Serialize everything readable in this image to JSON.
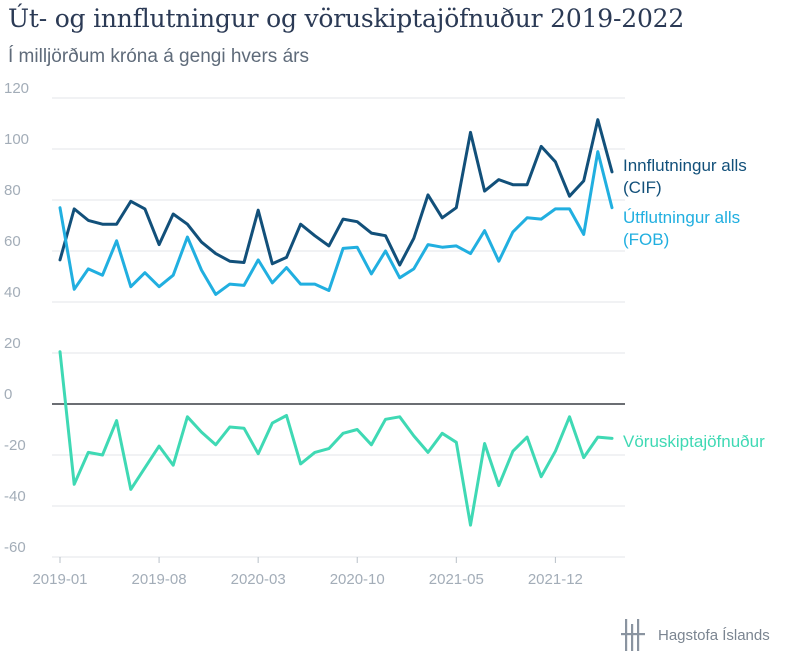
{
  "chart_data": {
    "type": "line",
    "title": "Út- og innflutningur og vöruskiptajöfnuður 2019-2022",
    "subtitle": "Í milljörðum króna á gengi hvers árs",
    "x": [
      "2019-01",
      "2019-02",
      "2019-03",
      "2019-04",
      "2019-05",
      "2019-06",
      "2019-07",
      "2019-08",
      "2019-09",
      "2019-10",
      "2019-11",
      "2019-12",
      "2020-01",
      "2020-02",
      "2020-03",
      "2020-04",
      "2020-05",
      "2020-06",
      "2020-07",
      "2020-08",
      "2020-09",
      "2020-10",
      "2020-11",
      "2020-12",
      "2021-01",
      "2021-02",
      "2021-03",
      "2021-04",
      "2021-05",
      "2021-06",
      "2021-07",
      "2021-08",
      "2021-09",
      "2021-10",
      "2021-11",
      "2021-12",
      "2022-01",
      "2022-02",
      "2022-03",
      "2022-04"
    ],
    "xticks": [
      "2019-01",
      "2019-08",
      "2020-03",
      "2020-10",
      "2021-05",
      "2021-12"
    ],
    "ylim": [
      -60,
      120
    ],
    "yticks": [
      120,
      100,
      80,
      60,
      40,
      20,
      0,
      -20,
      -40,
      -60
    ],
    "series": [
      {
        "name": "Innflutningur alls (CIF)",
        "label_lines": [
          "Innflutningur alls",
          "(CIF)"
        ],
        "color": "#12507a",
        "values": [
          56.5,
          76.5,
          72,
          70.5,
          70.5,
          79.5,
          76.5,
          62.5,
          74.5,
          70.5,
          63.5,
          59,
          56,
          55.5,
          76,
          55,
          57.5,
          70.5,
          66,
          62,
          72.5,
          71.5,
          67,
          66,
          54.5,
          65,
          82,
          73,
          77,
          106.5,
          83.5,
          88,
          86,
          86,
          101,
          95,
          81.5,
          87.5,
          111.5,
          91
        ]
      },
      {
        "name": "Útflutningur alls (FOB)",
        "label_lines": [
          "Útflutningur alls",
          "(FOB)"
        ],
        "color": "#21afe0",
        "values": [
          77,
          45,
          53,
          50.5,
          64,
          46,
          51.5,
          46,
          50.5,
          65.5,
          52.5,
          43,
          47,
          46.5,
          56.5,
          47.5,
          53.5,
          47,
          47,
          44.5,
          61,
          61.5,
          51,
          60,
          49.5,
          53,
          62.5,
          61.5,
          62,
          59,
          68,
          56,
          67.5,
          73,
          72.5,
          76.5,
          76.5,
          66.5,
          99,
          77
        ]
      },
      {
        "name": "Vöruskiptajöfnuður",
        "label_lines": [
          "Vöruskiptajöfnuður"
        ],
        "color": "#3fd9b4",
        "values": [
          20.5,
          -31.5,
          -19,
          -20,
          -6.5,
          -33.5,
          -25,
          -16.5,
          -24,
          -5,
          -11,
          -16,
          -9,
          -9.5,
          -19.5,
          -7.5,
          -4.5,
          -23.5,
          -19,
          -17.5,
          -11.5,
          -10,
          -16,
          -6,
          -5,
          -12.5,
          -19,
          -11.5,
          -15,
          -47.5,
          -15.5,
          -32,
          -18.5,
          -13,
          -28.5,
          -18.5,
          -5,
          -21,
          -13,
          -13.5
        ]
      }
    ]
  },
  "branding": {
    "name": "Hagstofa Íslands",
    "icon": "hagstofa-logo-icon"
  }
}
